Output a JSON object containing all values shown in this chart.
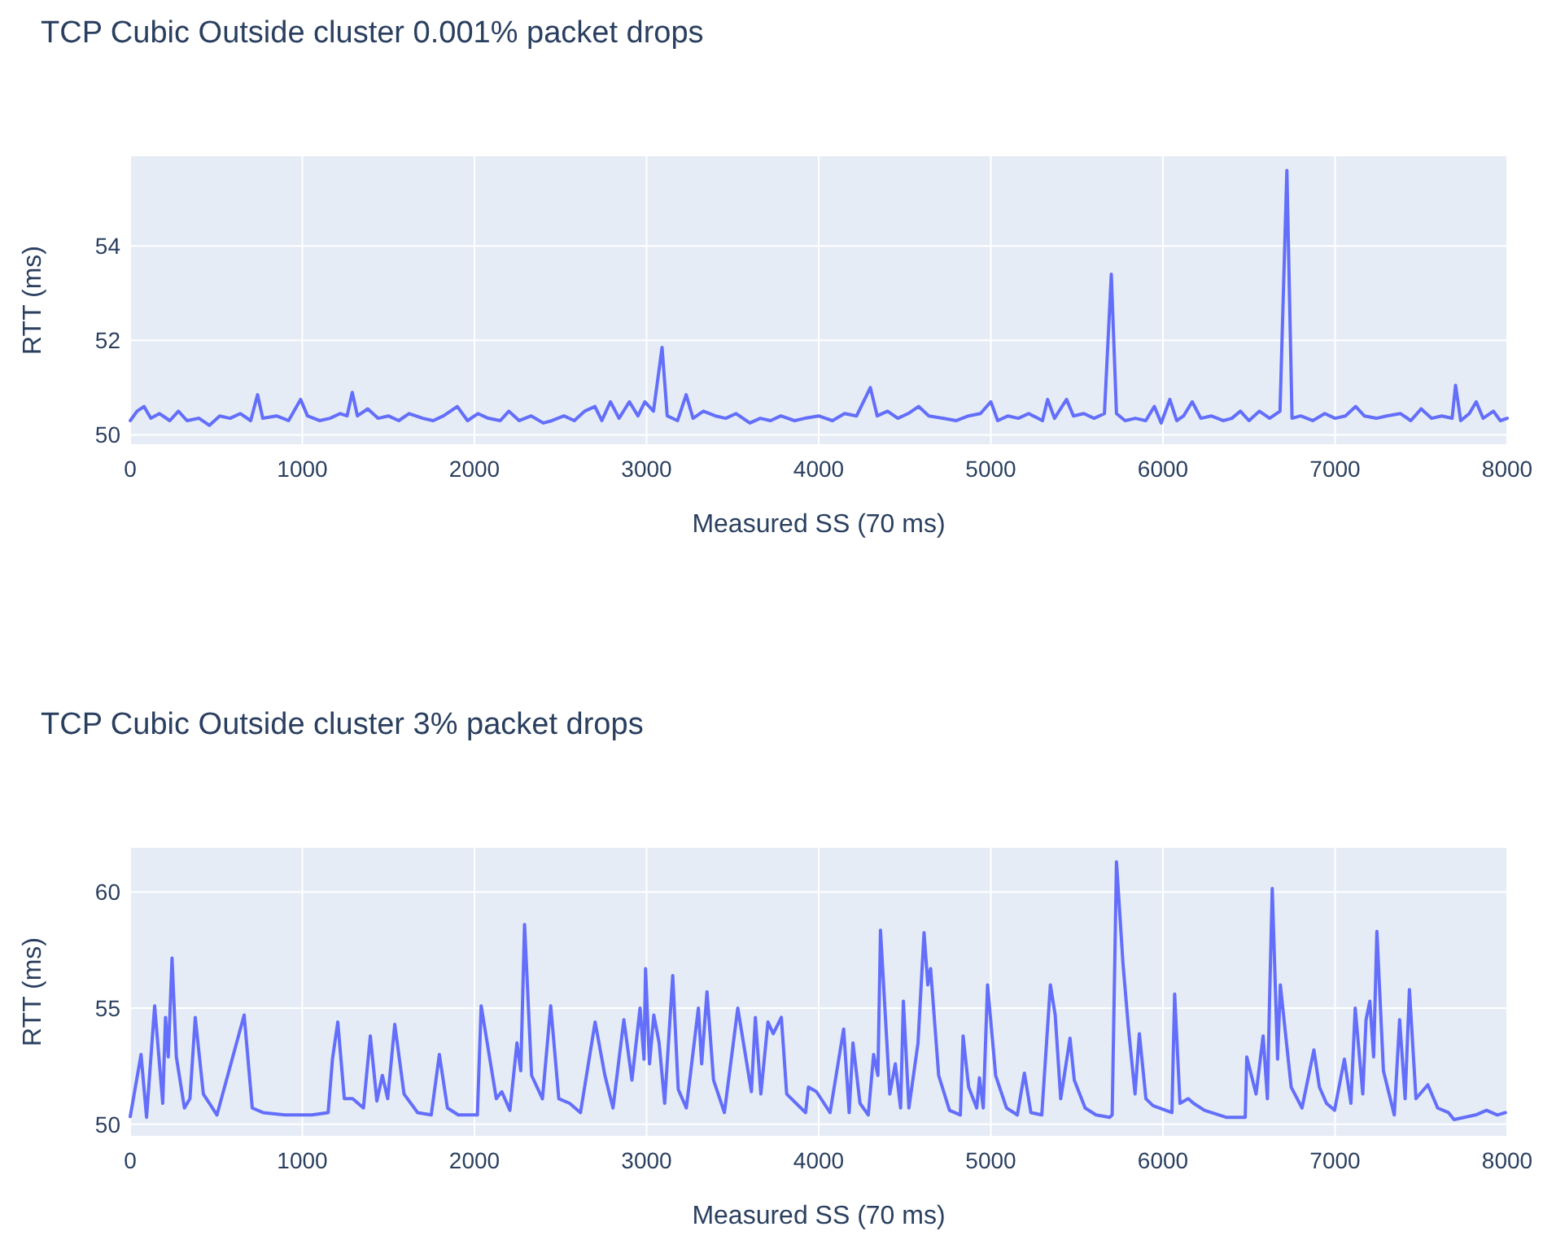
{
  "chart_data": [
    {
      "type": "line",
      "title": "TCP Cubic Outside cluster 0.001% packet drops",
      "xlabel": "Measured SS (70 ms)",
      "ylabel": "RTT (ms)",
      "xlim": [
        0,
        8000
      ],
      "xticks": [
        0,
        1000,
        2000,
        3000,
        4000,
        5000,
        6000,
        7000,
        8000
      ],
      "ylim": [
        49.8,
        55.9
      ],
      "yticks": [
        50,
        52,
        54
      ],
      "grid": true,
      "x": [
        0,
        40,
        80,
        120,
        170,
        230,
        280,
        330,
        400,
        460,
        520,
        580,
        640,
        700,
        740,
        770,
        850,
        920,
        990,
        1030,
        1100,
        1160,
        1220,
        1260,
        1290,
        1320,
        1380,
        1440,
        1500,
        1560,
        1620,
        1700,
        1760,
        1820,
        1900,
        1960,
        2020,
        2080,
        2150,
        2200,
        2260,
        2330,
        2400,
        2450,
        2520,
        2580,
        2640,
        2700,
        2740,
        2790,
        2840,
        2900,
        2950,
        2990,
        3040,
        3090,
        3120,
        3180,
        3230,
        3270,
        3330,
        3400,
        3460,
        3520,
        3600,
        3660,
        3720,
        3780,
        3860,
        3920,
        4000,
        4080,
        4150,
        4220,
        4300,
        4340,
        4400,
        4460,
        4520,
        4580,
        4640,
        4720,
        4800,
        4870,
        4940,
        5000,
        5040,
        5100,
        5160,
        5220,
        5300,
        5330,
        5370,
        5440,
        5480,
        5540,
        5600,
        5660,
        5700,
        5730,
        5780,
        5840,
        5900,
        5950,
        5990,
        6040,
        6080,
        6120,
        6170,
        6220,
        6280,
        6350,
        6400,
        6450,
        6500,
        6560,
        6620,
        6680,
        6720,
        6750,
        6800,
        6870,
        6940,
        7000,
        7060,
        7120,
        7170,
        7240,
        7300,
        7380,
        7440,
        7500,
        7560,
        7620,
        7680,
        7700,
        7730,
        7780,
        7820,
        7860,
        7920,
        7960,
        8000
      ],
      "series": [
        {
          "color": "#636efa",
          "values": [
            50.3,
            50.5,
            50.6,
            50.35,
            50.45,
            50.3,
            50.5,
            50.3,
            50.35,
            50.2,
            50.4,
            50.35,
            50.45,
            50.3,
            50.85,
            50.35,
            50.4,
            50.3,
            50.75,
            50.4,
            50.3,
            50.35,
            50.45,
            50.4,
            50.9,
            50.4,
            50.55,
            50.35,
            50.4,
            50.3,
            50.45,
            50.35,
            50.3,
            50.4,
            50.6,
            50.3,
            50.45,
            50.35,
            50.3,
            50.5,
            50.3,
            50.4,
            50.25,
            50.3,
            50.4,
            50.3,
            50.5,
            50.6,
            50.3,
            50.7,
            50.35,
            50.7,
            50.4,
            50.7,
            50.5,
            51.85,
            50.4,
            50.3,
            50.85,
            50.35,
            50.5,
            50.4,
            50.35,
            50.45,
            50.25,
            50.35,
            50.3,
            50.4,
            50.3,
            50.35,
            50.4,
            50.3,
            50.45,
            50.4,
            51.0,
            50.4,
            50.5,
            50.35,
            50.45,
            50.6,
            50.4,
            50.35,
            50.3,
            50.4,
            50.45,
            50.7,
            50.3,
            50.4,
            50.35,
            50.45,
            50.3,
            50.75,
            50.35,
            50.75,
            50.4,
            50.45,
            50.35,
            50.45,
            53.4,
            50.45,
            50.3,
            50.35,
            50.3,
            50.6,
            50.25,
            50.75,
            50.3,
            50.4,
            50.7,
            50.35,
            50.4,
            50.3,
            50.35,
            50.5,
            50.3,
            50.5,
            50.35,
            50.5,
            55.6,
            50.35,
            50.4,
            50.3,
            50.45,
            50.35,
            50.4,
            50.6,
            50.4,
            50.35,
            50.4,
            50.45,
            50.3,
            50.55,
            50.35,
            50.4,
            50.35,
            51.05,
            50.3,
            50.45,
            50.7,
            50.35,
            50.5,
            50.3,
            50.35
          ]
        }
      ]
    },
    {
      "type": "line",
      "title": "TCP Cubic Outside cluster 3% packet drops",
      "xlabel": "Measured SS (70 ms)",
      "ylabel": "RTT (ms)",
      "xlim": [
        0,
        8000
      ],
      "xticks": [
        0,
        1000,
        2000,
        3000,
        4000,
        5000,
        6000,
        7000,
        8000
      ],
      "ylim": [
        49.5,
        61.9
      ],
      "yticks": [
        50,
        55,
        60
      ],
      "grid": true,
      "x": [
        0,
        63,
        95,
        142,
        189,
        205,
        221,
        243,
        268,
        315,
        347,
        378,
        425,
        504,
        662,
        709,
        772,
        898,
        1056,
        1150,
        1175,
        1206,
        1244,
        1292,
        1355,
        1395,
        1433,
        1465,
        1496,
        1537,
        1591,
        1670,
        1749,
        1796,
        1843,
        1906,
        2017,
        2039,
        2127,
        2159,
        2206,
        2247,
        2269,
        2291,
        2332,
        2395,
        2443,
        2490,
        2553,
        2616,
        2701,
        2758,
        2805,
        2868,
        2915,
        2962,
        2985,
        2994,
        3017,
        3042,
        3073,
        3105,
        3152,
        3184,
        3231,
        3301,
        3320,
        3351,
        3389,
        3452,
        3530,
        3609,
        3632,
        3664,
        3705,
        3736,
        3783,
        3814,
        3924,
        3940,
        3987,
        4066,
        4145,
        4177,
        4199,
        4240,
        4288,
        4319,
        4344,
        4359,
        4413,
        4445,
        4476,
        4492,
        4524,
        4577,
        4612,
        4634,
        4650,
        4697,
        4760,
        4823,
        4839,
        4871,
        4918,
        4934,
        4956,
        4981,
        5028,
        5091,
        5154,
        5195,
        5233,
        5296,
        5346,
        5374,
        5406,
        5460,
        5485,
        5548,
        5611,
        5690,
        5705,
        5730,
        5768,
        5800,
        5838,
        5863,
        5901,
        5942,
        6052,
        6068,
        6099,
        6147,
        6178,
        6241,
        6367,
        6478,
        6487,
        6541,
        6582,
        6607,
        6619,
        6635,
        6666,
        6682,
        6745,
        6808,
        6877,
        6909,
        6950,
        6997,
        7054,
        7092,
        7117,
        7161,
        7180,
        7202,
        7224,
        7243,
        7281,
        7344,
        7375,
        7407,
        7432,
        7470,
        7539,
        7596,
        7659,
        7691,
        7817,
        7880,
        7943,
        7990
      ],
      "series": [
        {
          "color": "#636efa",
          "values": [
            50.33,
            53.0,
            50.3,
            55.1,
            50.9,
            54.6,
            52.9,
            57.15,
            52.9,
            50.7,
            51.1,
            54.6,
            51.3,
            50.4,
            54.7,
            50.7,
            50.5,
            50.4,
            50.4,
            50.5,
            52.8,
            54.4,
            51.1,
            51.1,
            50.7,
            53.8,
            51.0,
            52.1,
            51.1,
            54.3,
            51.3,
            50.5,
            50.4,
            53.0,
            50.7,
            50.4,
            50.4,
            55.1,
            51.1,
            51.4,
            50.6,
            53.5,
            52.3,
            58.6,
            52.1,
            51.1,
            55.1,
            51.1,
            50.9,
            50.5,
            54.4,
            52.1,
            50.7,
            54.5,
            51.9,
            55.0,
            52.8,
            56.7,
            52.6,
            54.7,
            53.5,
            50.9,
            56.4,
            51.5,
            50.7,
            55.0,
            52.6,
            55.7,
            51.9,
            50.5,
            55.0,
            51.4,
            54.6,
            51.3,
            54.4,
            53.9,
            54.6,
            51.3,
            50.5,
            51.6,
            51.4,
            50.5,
            54.1,
            50.5,
            53.5,
            50.9,
            50.4,
            53.0,
            52.1,
            58.35,
            51.3,
            52.6,
            50.7,
            55.3,
            50.7,
            53.5,
            58.25,
            56.0,
            56.7,
            52.1,
            50.6,
            50.4,
            53.8,
            51.6,
            50.7,
            52.0,
            50.7,
            56.0,
            52.1,
            50.7,
            50.4,
            52.2,
            50.5,
            50.4,
            56.0,
            54.7,
            51.1,
            53.7,
            51.9,
            50.7,
            50.4,
            50.3,
            50.4,
            61.3,
            56.9,
            54.1,
            51.3,
            53.9,
            51.1,
            50.8,
            50.5,
            55.6,
            50.9,
            51.1,
            50.9,
            50.6,
            50.3,
            50.3,
            52.9,
            51.3,
            53.8,
            51.1,
            55.2,
            60.15,
            52.8,
            56.0,
            51.6,
            50.7,
            53.2,
            51.6,
            50.9,
            50.6,
            52.8,
            50.9,
            55.0,
            51.3,
            54.5,
            55.3,
            52.9,
            58.3,
            52.3,
            50.4,
            54.5,
            51.1,
            55.8,
            51.1,
            51.7,
            50.7,
            50.5,
            50.2,
            50.4,
            50.6,
            50.4,
            50.5
          ]
        }
      ]
    }
  ]
}
